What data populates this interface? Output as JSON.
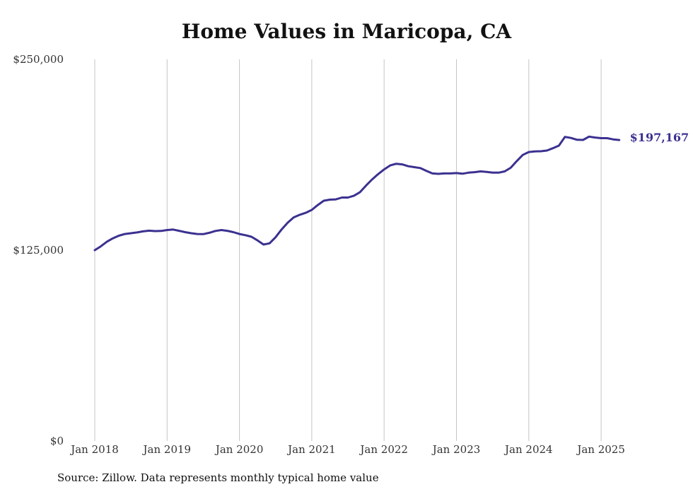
{
  "chart_data": {
    "type": "line",
    "title": "Home Values in Maricopa, CA",
    "xlabel": "",
    "ylabel": "",
    "ylim": [
      0,
      250000
    ],
    "y_ticks": [
      0,
      125000,
      250000
    ],
    "y_tick_labels": [
      "$0",
      "$125,000",
      "$250,000"
    ],
    "x_range": [
      "2018-01",
      "2025-04"
    ],
    "x_ticks": [
      "2018-01",
      "2019-01",
      "2020-01",
      "2021-01",
      "2022-01",
      "2023-01",
      "2024-01",
      "2025-01"
    ],
    "x_tick_labels": [
      "Jan 2018",
      "Jan 2019",
      "Jan 2020",
      "Jan 2021",
      "Jan 2022",
      "Jan 2023",
      "Jan 2024",
      "Jan 2025"
    ],
    "grid": "vertical",
    "line_color": "#3b3190",
    "series": [
      {
        "points": [
          [
            "2018-01",
            125000
          ],
          [
            "2018-02",
            127500
          ],
          [
            "2018-03",
            130500
          ],
          [
            "2018-04",
            132800
          ],
          [
            "2018-05",
            134500
          ],
          [
            "2018-06",
            135600
          ],
          [
            "2018-07",
            136100
          ],
          [
            "2018-08",
            136600
          ],
          [
            "2018-09",
            137300
          ],
          [
            "2018-10",
            137800
          ],
          [
            "2018-11",
            137500
          ],
          [
            "2018-12",
            137600
          ],
          [
            "2019-01",
            138200
          ],
          [
            "2019-02",
            138500
          ],
          [
            "2019-03",
            137700
          ],
          [
            "2019-04",
            136800
          ],
          [
            "2019-05",
            136100
          ],
          [
            "2019-06",
            135600
          ],
          [
            "2019-07",
            135500
          ],
          [
            "2019-08",
            136400
          ],
          [
            "2019-09",
            137600
          ],
          [
            "2019-10",
            138200
          ],
          [
            "2019-11",
            137700
          ],
          [
            "2019-12",
            136800
          ],
          [
            "2020-01",
            135600
          ],
          [
            "2020-02",
            134800
          ],
          [
            "2020-03",
            133800
          ],
          [
            "2020-04",
            131400
          ],
          [
            "2020-05",
            128700
          ],
          [
            "2020-06",
            129500
          ],
          [
            "2020-07",
            133500
          ],
          [
            "2020-08",
            138600
          ],
          [
            "2020-09",
            143000
          ],
          [
            "2020-10",
            146500
          ],
          [
            "2020-11",
            148200
          ],
          [
            "2020-12",
            149500
          ],
          [
            "2021-01",
            151400
          ],
          [
            "2021-02",
            154600
          ],
          [
            "2021-03",
            157400
          ],
          [
            "2021-04",
            158100
          ],
          [
            "2021-05",
            158300
          ],
          [
            "2021-06",
            159500
          ],
          [
            "2021-07",
            159500
          ],
          [
            "2021-08",
            160700
          ],
          [
            "2021-09",
            163000
          ],
          [
            "2021-10",
            167300
          ],
          [
            "2021-11",
            171300
          ],
          [
            "2021-12",
            174800
          ],
          [
            "2022-01",
            177900
          ],
          [
            "2022-02",
            180500
          ],
          [
            "2022-03",
            181600
          ],
          [
            "2022-04",
            181200
          ],
          [
            "2022-05",
            180000
          ],
          [
            "2022-06",
            179400
          ],
          [
            "2022-07",
            178800
          ],
          [
            "2022-08",
            177000
          ],
          [
            "2022-09",
            175300
          ],
          [
            "2022-10",
            175000
          ],
          [
            "2022-11",
            175300
          ],
          [
            "2022-12",
            175300
          ],
          [
            "2023-01",
            175500
          ],
          [
            "2023-02",
            175100
          ],
          [
            "2023-03",
            175800
          ],
          [
            "2023-04",
            176100
          ],
          [
            "2023-05",
            176600
          ],
          [
            "2023-06",
            176300
          ],
          [
            "2023-07",
            175800
          ],
          [
            "2023-08",
            175800
          ],
          [
            "2023-09",
            176600
          ],
          [
            "2023-10",
            179000
          ],
          [
            "2023-11",
            183400
          ],
          [
            "2023-12",
            187400
          ],
          [
            "2024-01",
            189300
          ],
          [
            "2024-02",
            189700
          ],
          [
            "2024-03",
            189800
          ],
          [
            "2024-04",
            190300
          ],
          [
            "2024-05",
            191800
          ],
          [
            "2024-06",
            193500
          ],
          [
            "2024-07",
            199200
          ],
          [
            "2024-08",
            198500
          ],
          [
            "2024-09",
            197300
          ],
          [
            "2024-10",
            197200
          ],
          [
            "2024-11",
            199400
          ],
          [
            "2024-12",
            198800
          ],
          [
            "2025-01",
            198400
          ],
          [
            "2025-02",
            198400
          ],
          [
            "2025-03",
            197600
          ],
          [
            "2025-04",
            197167
          ]
        ]
      }
    ],
    "end_label": "$197,167"
  },
  "footer": {
    "source_text": "Source: Zillow. Data represents monthly typical home value"
  }
}
